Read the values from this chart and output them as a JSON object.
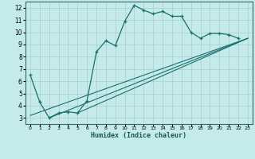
{
  "xlabel": "Humidex (Indice chaleur)",
  "bg_color": "#c5eaea",
  "grid_color": "#aacccc",
  "line_color": "#1a7070",
  "xlim": [
    -0.5,
    23.5
  ],
  "ylim": [
    2.5,
    12.5
  ],
  "xticks": [
    0,
    1,
    2,
    3,
    4,
    5,
    6,
    7,
    8,
    9,
    10,
    11,
    12,
    13,
    14,
    15,
    16,
    17,
    18,
    19,
    20,
    21,
    22,
    23
  ],
  "yticks": [
    3,
    4,
    5,
    6,
    7,
    8,
    9,
    10,
    11,
    12
  ],
  "line1_x": [
    0,
    1,
    2,
    3,
    4,
    5,
    6,
    7,
    8,
    9,
    10,
    11,
    12,
    13,
    14,
    15,
    16,
    17,
    18,
    19,
    20,
    21,
    22
  ],
  "line1_y": [
    6.5,
    4.3,
    3.0,
    3.4,
    3.5,
    3.4,
    4.4,
    8.4,
    9.3,
    8.9,
    10.9,
    12.2,
    11.8,
    11.5,
    11.7,
    11.3,
    11.3,
    10.0,
    9.5,
    9.9,
    9.9,
    9.8,
    9.5
  ],
  "line2_x": [
    0,
    23
  ],
  "line2_y": [
    3.2,
    9.5
  ],
  "line3_x": [
    2,
    23
  ],
  "line3_y": [
    3.0,
    9.5
  ],
  "line4_x": [
    5,
    23
  ],
  "line4_y": [
    3.4,
    9.5
  ]
}
